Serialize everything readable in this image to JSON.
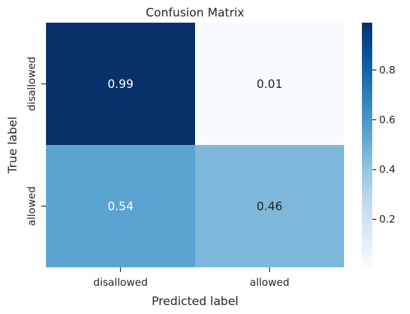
{
  "chart_data": {
    "type": "heatmap",
    "title": "Confusion Matrix",
    "xlabel": "Predicted label",
    "ylabel": "True label",
    "x_categories": [
      "disallowed",
      "allowed"
    ],
    "y_categories": [
      "disallowed",
      "allowed"
    ],
    "values": [
      [
        0.99,
        0.01
      ],
      [
        0.54,
        0.46
      ]
    ],
    "value_labels": [
      [
        "0.99",
        "0.01"
      ],
      [
        "0.54",
        "0.46"
      ]
    ],
    "colormap": "Blues",
    "colorbar": {
      "range": [
        0.01,
        0.99
      ],
      "ticks": [
        0.2,
        0.4,
        0.6,
        0.8
      ],
      "tick_labels": [
        "0.2",
        "0.4",
        "0.6",
        "0.8"
      ]
    },
    "colors": {
      "0.99": "#08306b",
      "0.01": "#f7fbff",
      "0.54": "#5aa3d2",
      "0.46": "#7db8da"
    }
  }
}
